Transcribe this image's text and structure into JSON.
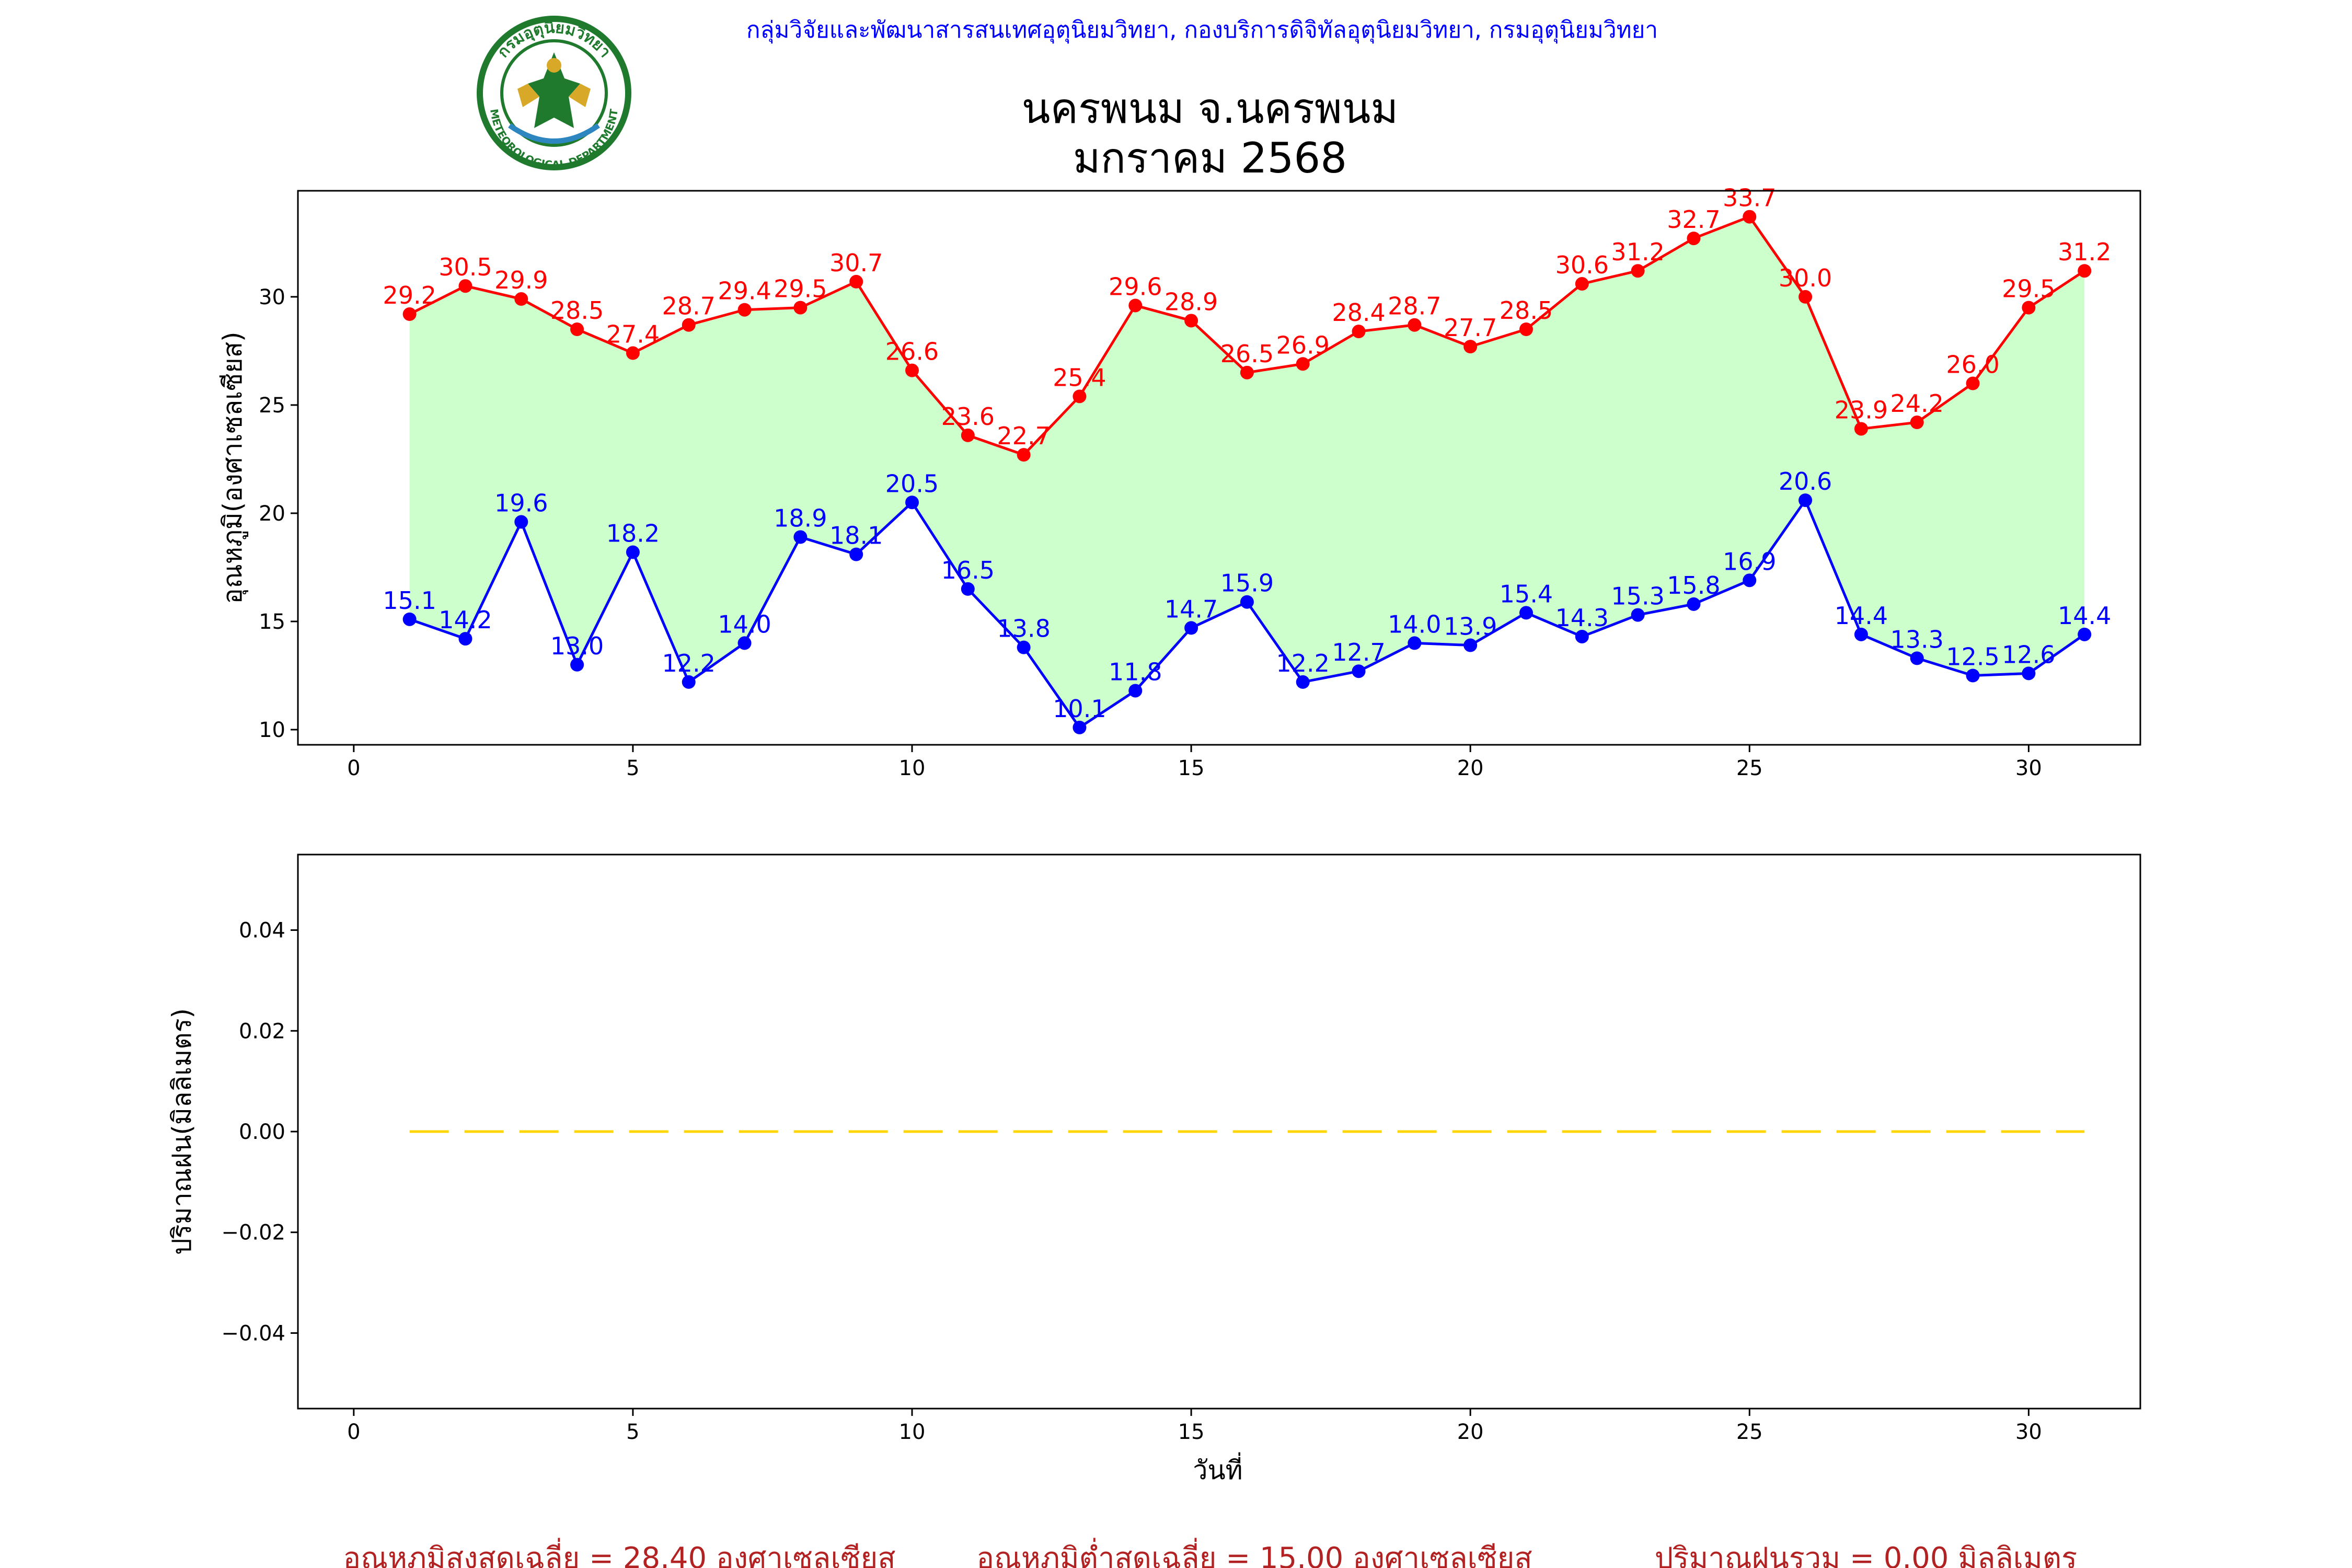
{
  "header": {
    "organization": "กลุ่มวิจัยและพัฒนาสารสนเทศอุตุนิยมวิทยา, กองบริการดิจิทัลอุตุนิยมวิทยา, กรมอุตุนิยมวิทยา",
    "title_line1": "นครพนม จ.นครพนม",
    "title_line2": "มกราคม 2568",
    "logo": {
      "name": "meteorological-department-seal",
      "top_text": "กรมอุตุนิยมวิทยา",
      "bottom_text": "METEOROLOGICAL DEPARTMENT",
      "ring_color": "#1f7a2e",
      "gold_color": "#d8a928"
    }
  },
  "chart_data": [
    {
      "type": "line",
      "ylabel": "อุณหภูมิ(องศาเซลเซียส)",
      "xlabel": "",
      "xlim": [
        -1,
        32
      ],
      "ylim": [
        9.3,
        34.9
      ],
      "xticks": [
        0,
        5,
        10,
        15,
        20,
        25,
        30
      ],
      "yticks": [
        10,
        15,
        20,
        25,
        30
      ],
      "grid": false,
      "fill_between": {
        "color": "#ccffcc"
      },
      "x": [
        1,
        2,
        3,
        4,
        5,
        6,
        7,
        8,
        9,
        10,
        11,
        12,
        13,
        14,
        15,
        16,
        17,
        18,
        19,
        20,
        21,
        22,
        23,
        24,
        25,
        26,
        27,
        28,
        29,
        30,
        31
      ],
      "series": [
        {
          "color": "#ff0000",
          "values": [
            29.2,
            30.5,
            29.9,
            28.5,
            27.4,
            28.7,
            29.4,
            29.5,
            30.7,
            26.6,
            23.6,
            22.7,
            25.4,
            29.6,
            28.9,
            26.5,
            26.9,
            28.4,
            28.7,
            27.7,
            28.5,
            30.6,
            31.2,
            32.7,
            33.7,
            30.0,
            23.9,
            24.2,
            26.0,
            29.5,
            31.2
          ],
          "labels": [
            "29.2",
            "30.5",
            "29.9",
            "28.5",
            "27.4",
            "28.7",
            "29.4",
            "29.5",
            "30.7",
            "26.6",
            "23.6",
            "22.7",
            "25.4",
            "29.6",
            "28.9",
            "26.5",
            "26.9",
            "28.4",
            "28.7",
            "27.7",
            "28.5",
            "30.6",
            "31.2",
            "32.7",
            "33.7",
            "30.0",
            "23.9",
            "24.2",
            "26.0",
            "29.5",
            "31.2"
          ]
        },
        {
          "color": "#0000ff",
          "values": [
            15.1,
            14.2,
            19.6,
            13.0,
            18.2,
            12.2,
            14.0,
            18.9,
            18.1,
            20.5,
            16.5,
            13.8,
            10.1,
            11.8,
            14.7,
            15.9,
            12.2,
            12.7,
            14.0,
            13.9,
            15.4,
            14.3,
            15.3,
            15.8,
            16.9,
            20.6,
            14.4,
            13.3,
            12.5,
            12.6,
            14.4
          ],
          "labels": [
            "15.1",
            "14.2",
            "19.6",
            "13.0",
            "18.2",
            "12.2",
            "14.0",
            "18.9",
            "18.1",
            "20.5",
            "16.5",
            "13.8",
            "10.1",
            "11.8",
            "14.7",
            "15.9",
            "12.2",
            "12.7",
            "14.0",
            "13.9",
            "15.4",
            "14.3",
            "15.3",
            "15.8",
            "16.9",
            "20.6",
            "14.4",
            "13.3",
            "12.5",
            "12.6",
            "14.4"
          ]
        }
      ]
    },
    {
      "type": "line",
      "ylabel": "ปริมาณฝน(มิลลิเมตร)",
      "xlabel": "วันที่",
      "xlim": [
        -1,
        32
      ],
      "ylim": [
        -0.055,
        0.055
      ],
      "xticks": [
        0,
        5,
        10,
        15,
        20,
        25,
        30
      ],
      "yticks": [
        -0.04,
        -0.02,
        0.0,
        0.02,
        0.04
      ],
      "ytick_labels": [
        "−0.04",
        "−0.02",
        "0.00",
        "0.02",
        "0.04"
      ],
      "grid": false,
      "x": [
        1,
        2,
        3,
        4,
        5,
        6,
        7,
        8,
        9,
        10,
        11,
        12,
        13,
        14,
        15,
        16,
        17,
        18,
        19,
        20,
        21,
        22,
        23,
        24,
        25,
        26,
        27,
        28,
        29,
        30,
        31
      ],
      "series": [
        {
          "color": "#ffd700",
          "line_style": "dashed",
          "values": [
            0,
            0,
            0,
            0,
            0,
            0,
            0,
            0,
            0,
            0,
            0,
            0,
            0,
            0,
            0,
            0,
            0,
            0,
            0,
            0,
            0,
            0,
            0,
            0,
            0,
            0,
            0,
            0,
            0,
            0,
            0
          ]
        }
      ]
    }
  ],
  "footer": {
    "color": "#b22222",
    "avg_max": "อุณหภูมิสูงสุดเฉลี่ย = 28.40 องศาเซลเซียส",
    "avg_min": "อุณหภูมิต่ำสุดเฉลี่ย = 15.00 องศาเซลเซียส",
    "total_rain": "ปริมาณฝนรวม = 0.00 มิลลิเมตร"
  }
}
